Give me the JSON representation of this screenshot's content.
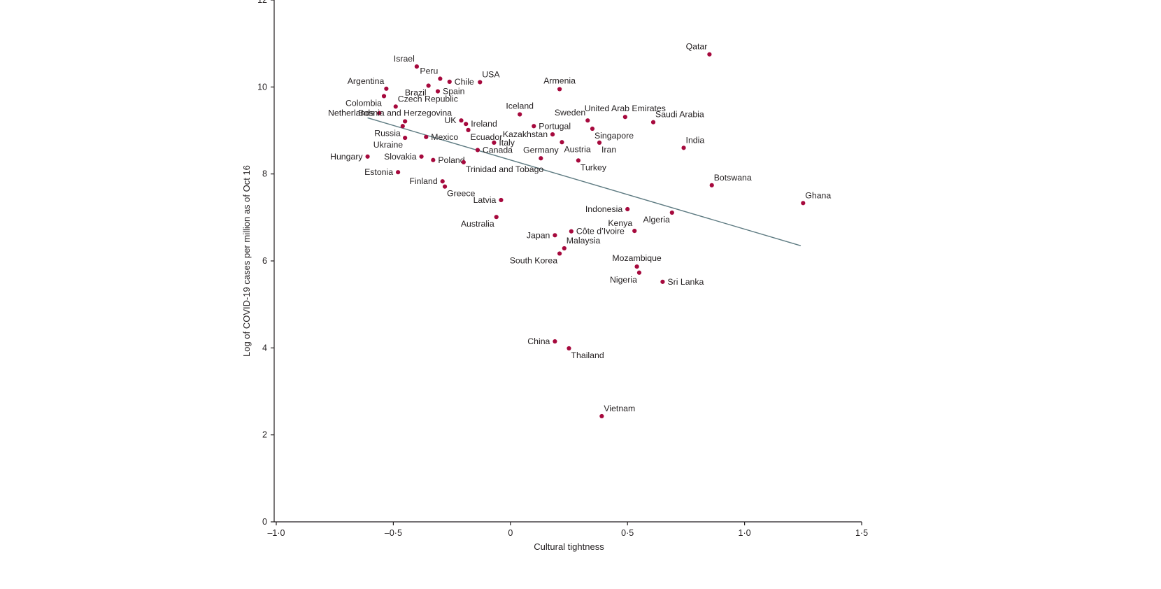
{
  "chart_data": {
    "type": "scatter",
    "title": "",
    "xlabel": "Cultural tightness",
    "ylabel": "Log of COVID-19 cases per million as of Oct 16",
    "xlim": [
      -1.0,
      1.5
    ],
    "ylim": [
      0,
      12
    ],
    "grid": false,
    "legend": null,
    "x_ticks": [
      {
        "v": -1.0,
        "label": "–1·0"
      },
      {
        "v": -0.5,
        "label": "–0·5"
      },
      {
        "v": 0.0,
        "label": "0"
      },
      {
        "v": 0.5,
        "label": "0·5"
      },
      {
        "v": 1.0,
        "label": "1·0"
      },
      {
        "v": 1.5,
        "label": "1·5"
      }
    ],
    "y_ticks": [
      {
        "v": 0,
        "label": "0"
      },
      {
        "v": 2,
        "label": "2"
      },
      {
        "v": 4,
        "label": "4"
      },
      {
        "v": 6,
        "label": "6"
      },
      {
        "v": 8,
        "label": "8"
      },
      {
        "v": 10,
        "label": "10"
      },
      {
        "v": 12,
        "label": "12"
      }
    ],
    "colors": {
      "point": "#a6093d",
      "trendline": "#5e7b82",
      "text": "#231f20",
      "axis": "#231f20"
    },
    "trendline": {
      "x1": -0.61,
      "y1": 9.29,
      "x2": 1.24,
      "y2": 6.35
    },
    "points": [
      {
        "name": "Qatar",
        "x": 0.85,
        "y": 10.75,
        "lp": "al"
      },
      {
        "name": "Israel",
        "x": -0.4,
        "y": 10.47,
        "lp": "al"
      },
      {
        "name": "Peru",
        "x": -0.3,
        "y": 10.19,
        "lp": "al"
      },
      {
        "name": "Chile",
        "x": -0.26,
        "y": 10.12,
        "lp": "r"
      },
      {
        "name": "USA",
        "x": -0.13,
        "y": 10.11,
        "lp": "ar"
      },
      {
        "name": "Brazil",
        "x": -0.35,
        "y": 10.03,
        "lp": "bl"
      },
      {
        "name": "Argentina",
        "x": -0.53,
        "y": 9.96,
        "lp": "al"
      },
      {
        "name": "Spain",
        "x": -0.31,
        "y": 9.9,
        "lp": "r"
      },
      {
        "name": "Armenia",
        "x": 0.21,
        "y": 9.95,
        "lp": "a"
      },
      {
        "name": "Colombia",
        "x": -0.54,
        "y": 9.79,
        "lp": "bl"
      },
      {
        "name": "Czech Republic",
        "x": -0.49,
        "y": 9.55,
        "lp": "ar"
      },
      {
        "name": "Netherlands",
        "x": -0.56,
        "y": 9.4,
        "lp": "l"
      },
      {
        "name": "Iceland",
        "x": 0.04,
        "y": 9.37,
        "lp": "a"
      },
      {
        "name": "United Arab Emirates",
        "x": 0.49,
        "y": 9.31,
        "lp": "a"
      },
      {
        "name": "Bosnia and Herzegovina",
        "x": -0.45,
        "y": 9.21,
        "lp": "a"
      },
      {
        "name": "Sweden",
        "x": 0.33,
        "y": 9.23,
        "lp": "al"
      },
      {
        "name": "UK",
        "x": -0.21,
        "y": 9.23,
        "lp": "l"
      },
      {
        "name": "Saudi Arabia",
        "x": 0.61,
        "y": 9.19,
        "lp": "ar"
      },
      {
        "name": "Ireland",
        "x": -0.19,
        "y": 9.15,
        "lp": "r"
      },
      {
        "name": "Portugal",
        "x": 0.1,
        "y": 9.1,
        "lp": "r"
      },
      {
        "name": "Russia",
        "x": -0.46,
        "y": 9.1,
        "lp": "bl"
      },
      {
        "name": "Singapore",
        "x": 0.35,
        "y": 9.04,
        "lp": "br"
      },
      {
        "name": "Ecuador",
        "x": -0.18,
        "y": 9.01,
        "lp": "br"
      },
      {
        "name": "Kazakhstan",
        "x": 0.18,
        "y": 8.91,
        "lp": "l"
      },
      {
        "name": "Ukraine",
        "x": -0.45,
        "y": 8.83,
        "lp": "bl"
      },
      {
        "name": "Mexico",
        "x": -0.36,
        "y": 8.85,
        "lp": "r"
      },
      {
        "name": "Italy",
        "x": -0.07,
        "y": 8.72,
        "lp": "r"
      },
      {
        "name": "Austria",
        "x": 0.22,
        "y": 8.73,
        "lp": "br"
      },
      {
        "name": "Iran",
        "x": 0.38,
        "y": 8.72,
        "lp": "br"
      },
      {
        "name": "India",
        "x": 0.74,
        "y": 8.6,
        "lp": "ar"
      },
      {
        "name": "Canada",
        "x": -0.14,
        "y": 8.55,
        "lp": "r"
      },
      {
        "name": "Hungary",
        "x": -0.61,
        "y": 8.4,
        "lp": "l"
      },
      {
        "name": "Slovakia",
        "x": -0.38,
        "y": 8.4,
        "lp": "l"
      },
      {
        "name": "Germany",
        "x": 0.13,
        "y": 8.36,
        "lp": "a"
      },
      {
        "name": "Turkey",
        "x": 0.29,
        "y": 8.31,
        "lp": "br"
      },
      {
        "name": "Poland",
        "x": -0.33,
        "y": 8.32,
        "lp": "r"
      },
      {
        "name": "Trinidad and Tobago",
        "x": -0.2,
        "y": 8.27,
        "lp": "br"
      },
      {
        "name": "Estonia",
        "x": -0.48,
        "y": 8.04,
        "lp": "l"
      },
      {
        "name": "Finland",
        "x": -0.29,
        "y": 7.83,
        "lp": "l"
      },
      {
        "name": "Botswana",
        "x": 0.86,
        "y": 7.74,
        "lp": "ar"
      },
      {
        "name": "Greece",
        "x": -0.28,
        "y": 7.71,
        "lp": "br"
      },
      {
        "name": "Ghana",
        "x": 1.25,
        "y": 7.33,
        "lp": "ar"
      },
      {
        "name": "Latvia",
        "x": -0.04,
        "y": 7.4,
        "lp": "l"
      },
      {
        "name": "Indonesia",
        "x": 0.5,
        "y": 7.19,
        "lp": "l"
      },
      {
        "name": "Algeria",
        "x": 0.69,
        "y": 7.11,
        "lp": "bl"
      },
      {
        "name": "Australia",
        "x": -0.06,
        "y": 7.01,
        "lp": "bl"
      },
      {
        "name": "Kenya",
        "x": 0.53,
        "y": 6.69,
        "lp": "al"
      },
      {
        "name": "Côte d’Ivoire",
        "x": 0.26,
        "y": 6.68,
        "lp": "r"
      },
      {
        "name": "Japan",
        "x": 0.19,
        "y": 6.59,
        "lp": "l"
      },
      {
        "name": "Malaysia",
        "x": 0.23,
        "y": 6.29,
        "lp": "ar"
      },
      {
        "name": "South Korea",
        "x": 0.21,
        "y": 6.17,
        "lp": "bl"
      },
      {
        "name": "Mozambique",
        "x": 0.54,
        "y": 5.87,
        "lp": "a"
      },
      {
        "name": "Nigeria",
        "x": 0.55,
        "y": 5.73,
        "lp": "bl"
      },
      {
        "name": "Sri Lanka",
        "x": 0.65,
        "y": 5.52,
        "lp": "r"
      },
      {
        "name": "China",
        "x": 0.19,
        "y": 4.15,
        "lp": "l"
      },
      {
        "name": "Thailand",
        "x": 0.25,
        "y": 3.99,
        "lp": "br"
      },
      {
        "name": "Vietnam",
        "x": 0.39,
        "y": 2.43,
        "lp": "ar"
      }
    ]
  }
}
